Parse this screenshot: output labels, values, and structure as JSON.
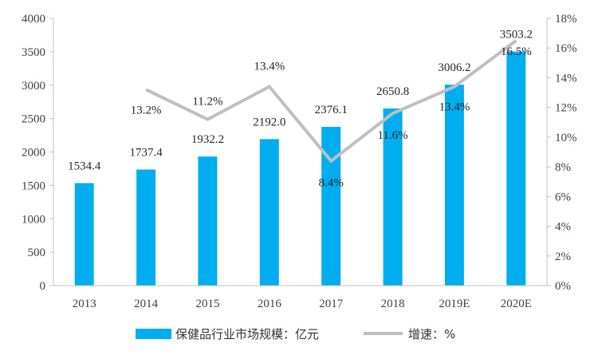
{
  "chart_data": {
    "type": "bar",
    "categories": [
      "2013",
      "2014",
      "2015",
      "2016",
      "2017",
      "2018",
      "2019E",
      "2020E"
    ],
    "series": [
      {
        "name": "保健品行业市场规模：亿元",
        "type": "bar",
        "axis": "left",
        "values": [
          1534.4,
          1737.4,
          1932.2,
          2192.0,
          2376.1,
          2650.8,
          3006.2,
          3503.2
        ],
        "labels": [
          "1534.4",
          "1737.4",
          "1932.2",
          "2192.0",
          "2376.1",
          "2650.8",
          "3006.2",
          "3503.2"
        ],
        "color": "#00aeef"
      },
      {
        "name": "增速：%",
        "type": "line",
        "axis": "right",
        "values": [
          null,
          13.2,
          11.2,
          13.4,
          8.4,
          11.6,
          13.4,
          16.5
        ],
        "labels": [
          "",
          "13.2%",
          "11.2%",
          "13.4%",
          "8.4%",
          "11.6%",
          "13.4%",
          "16.5%"
        ],
        "color": "#bfbfbf"
      }
    ],
    "y_left": {
      "lim": [
        0,
        4000
      ],
      "ticks": [
        "0",
        "500",
        "1000",
        "1500",
        "2000",
        "2500",
        "3000",
        "3500",
        "4000"
      ]
    },
    "y_right": {
      "lim": [
        0,
        18
      ],
      "ticks": [
        "0%",
        "2%",
        "4%",
        "6%",
        "8%",
        "10%",
        "12%",
        "14%",
        "16%",
        "18%"
      ]
    },
    "grid": false,
    "legend": "bottom"
  }
}
